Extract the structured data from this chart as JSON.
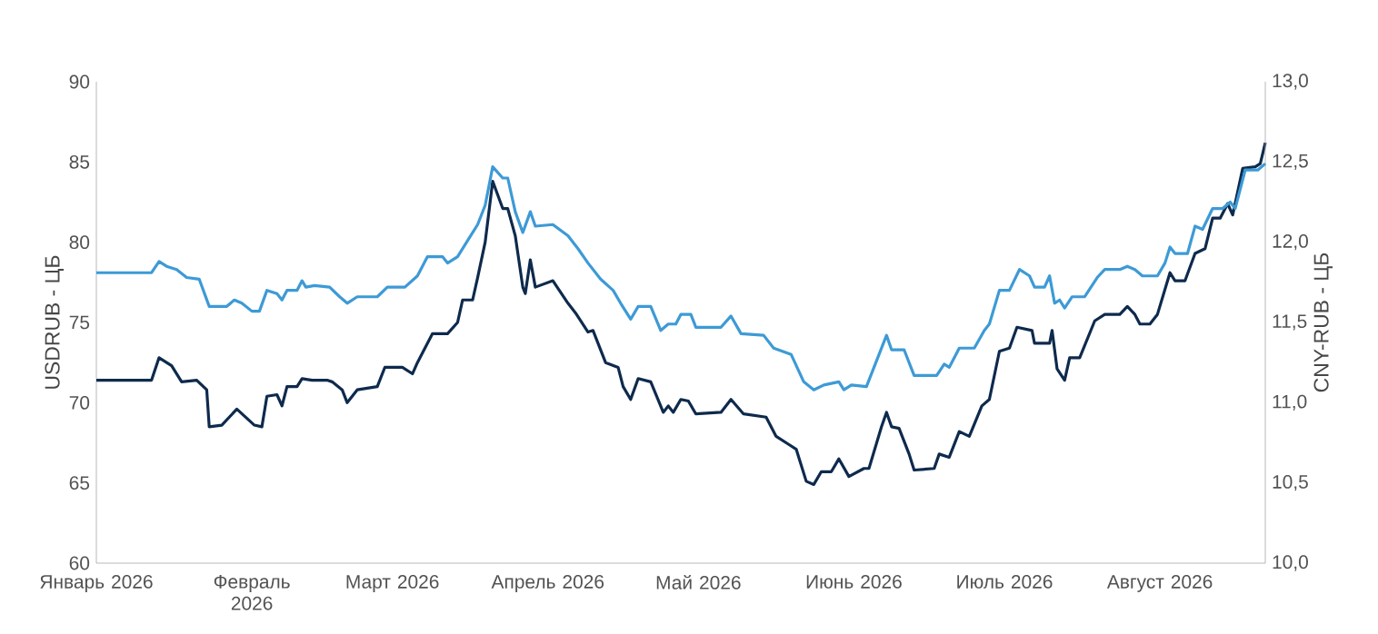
{
  "chart_data": {
    "type": "line",
    "ylabel": "USDRUB - ЦБ",
    "y2label": "CNY-RUB - ЦБ",
    "xlim": [
      "2026-01-01",
      "2026-08-22"
    ],
    "xticks": [
      {
        "value": "2026-01-01",
        "label": "Январь 2026"
      },
      {
        "value": "2026-02-01",
        "label": "Февраль 2026"
      },
      {
        "value": "2026-03-01",
        "label": "Март 2026"
      },
      {
        "value": "2026-04-01",
        "label": "Апрель 2026"
      },
      {
        "value": "2026-05-01",
        "label": "Май 2026"
      },
      {
        "value": "2026-06-01",
        "label": "Июнь 2026"
      },
      {
        "value": "2026-07-01",
        "label": "Июль 2026"
      },
      {
        "value": "2026-08-01",
        "label": "Август 2026"
      }
    ],
    "ylim": [
      60,
      90
    ],
    "yticks": [
      60,
      65,
      70,
      75,
      80,
      85,
      90
    ],
    "y2lim": [
      10,
      13
    ],
    "y2ticks": [
      {
        "value": 10,
        "label": "10,0"
      },
      {
        "value": 10.5,
        "label": "10,5"
      },
      {
        "value": 11,
        "label": "11,0"
      },
      {
        "value": 11.5,
        "label": "11,5"
      },
      {
        "value": 12,
        "label": "12,0"
      },
      {
        "value": 12.5,
        "label": "12,5"
      },
      {
        "value": 13,
        "label": "13,0"
      }
    ],
    "grid": false,
    "legend": false,
    "series": [
      {
        "color": "#0e2a4d",
        "x": [
          "2026-01-01",
          "2026-01-12",
          "2026-01-13T12:00",
          "2026-01-16",
          "2026-01-18",
          "2026-01-21",
          "2026-01-23",
          "2026-01-23T12:00",
          "2026-01-26",
          "2026-01-29",
          "2026-02-01T12:00",
          "2026-02-03",
          "2026-02-04",
          "2026-02-06",
          "2026-02-07",
          "2026-02-08",
          "2026-02-10",
          "2026-02-11",
          "2026-02-13",
          "2026-02-16",
          "2026-02-17",
          "2026-02-19",
          "2026-02-20",
          "2026-02-22",
          "2026-02-26",
          "2026-02-27T12:00",
          "2026-03-03",
          "2026-03-05",
          "2026-03-06",
          "2026-03-09",
          "2026-03-12",
          "2026-03-14",
          "2026-03-15",
          "2026-03-17",
          "2026-03-18",
          "2026-03-19T12:00",
          "2026-03-21",
          "2026-03-23",
          "2026-03-24",
          "2026-03-25T12:00",
          "2026-03-27",
          "2026-03-27T12:00",
          "2026-03-28T12:00",
          "2026-03-29T12:00",
          "2026-04-02",
          "2026-04-05",
          "2026-04-06T12:00",
          "2026-04-09",
          "2026-04-10",
          "2026-04-12T12:00",
          "2026-04-15",
          "2026-04-16",
          "2026-04-17T12:00",
          "2026-04-19",
          "2026-04-21T12:00",
          "2026-04-24",
          "2026-04-25",
          "2026-04-26",
          "2026-04-27T12:00",
          "2026-04-29",
          "2026-04-30T12:00",
          "2026-05-05T12:00",
          "2026-05-07T12:00",
          "2026-05-10",
          "2026-05-14T12:00",
          "2026-05-16T12:00",
          "2026-05-19",
          "2026-05-20T12:00",
          "2026-05-22T12:00",
          "2026-05-24",
          "2026-05-25T12:00",
          "2026-05-27T12:00",
          "2026-05-29",
          "2026-05-31",
          "2026-06-03",
          "2026-06-04",
          "2026-06-06T12:00",
          "2026-06-07T12:00",
          "2026-06-08T12:00",
          "2026-06-10",
          "2026-06-12",
          "2026-06-13",
          "2026-06-17",
          "2026-06-18",
          "2026-06-20",
          "2026-06-22",
          "2026-06-24",
          "2026-06-26T12:00",
          "2026-06-28",
          "2026-06-30",
          "2026-07-02",
          "2026-07-03T12:00",
          "2026-07-06T12:00",
          "2026-07-07",
          "2026-07-10",
          "2026-07-10T12:00",
          "2026-07-11T12:00",
          "2026-07-13",
          "2026-07-14",
          "2026-07-16",
          "2026-07-19",
          "2026-07-21",
          "2026-07-24",
          "2026-07-25T12:00",
          "2026-07-27",
          "2026-07-28",
          "2026-07-30",
          "2026-07-31T12:00",
          "2026-08-03",
          "2026-08-04",
          "2026-08-06",
          "2026-08-08",
          "2026-08-10",
          "2026-08-11T12:00",
          "2026-08-13",
          "2026-08-14T12:00",
          "2026-08-15T12:00",
          "2026-08-17T12:00",
          "2026-08-20",
          "2026-08-21",
          "2026-08-22"
        ],
        "values": [
          71.4,
          71.4,
          72.8,
          72.3,
          71.3,
          71.4,
          70.8,
          68.5,
          68.6,
          69.6,
          68.6,
          68.5,
          70.4,
          70.5,
          69.8,
          71.0,
          71.0,
          71.5,
          71.4,
          71.4,
          71.3,
          70.8,
          70.0,
          70.8,
          71.0,
          72.2,
          72.2,
          71.8,
          72.5,
          74.3,
          74.3,
          75.0,
          76.4,
          76.4,
          77.8,
          80.0,
          83.8,
          82.1,
          82.1,
          80.4,
          77.2,
          76.8,
          78.9,
          77.2,
          77.6,
          76.2,
          75.6,
          74.4,
          74.5,
          72.5,
          72.2,
          71.0,
          70.2,
          71.5,
          71.3,
          69.4,
          69.8,
          69.4,
          70.2,
          70.1,
          69.3,
          69.4,
          70.2,
          69.3,
          69.1,
          67.9,
          67.4,
          67.1,
          65.1,
          64.9,
          65.7,
          65.7,
          66.5,
          65.4,
          65.9,
          65.9,
          68.5,
          69.4,
          68.5,
          68.4,
          66.8,
          65.8,
          65.9,
          66.8,
          66.6,
          68.2,
          67.9,
          69.8,
          70.2,
          73.2,
          73.4,
          74.7,
          74.5,
          73.7,
          73.7,
          74.5,
          72.1,
          71.4,
          72.8,
          72.8,
          75.1,
          75.5,
          75.5,
          76.0,
          75.5,
          74.9,
          74.9,
          75.5,
          78.1,
          77.6,
          77.6,
          79.3,
          79.6,
          81.5,
          81.5,
          82.4,
          81.7,
          84.6,
          84.7,
          84.9,
          86.2
        ]
      },
      {
        "color": "#3d9ad6",
        "axis": "y2",
        "x": [
          "2026-01-01",
          "2026-01-12",
          "2026-01-13T12:00",
          "2026-01-15",
          "2026-01-17",
          "2026-01-19",
          "2026-01-21T12:00",
          "2026-01-23T12:00",
          "2026-01-27",
          "2026-01-28T12:00",
          "2026-01-30",
          "2026-02-01",
          "2026-02-02T12:00",
          "2026-02-04",
          "2026-02-06",
          "2026-02-07",
          "2026-02-08",
          "2026-02-10",
          "2026-02-11",
          "2026-02-11T18:00",
          "2026-02-13T12:00",
          "2026-02-16T12:00",
          "2026-02-18T12:00",
          "2026-02-20",
          "2026-02-22",
          "2026-02-26",
          "2026-02-28",
          "2026-03-03T12:00",
          "2026-03-06",
          "2026-03-08",
          "2026-03-11",
          "2026-03-12",
          "2026-03-14",
          "2026-03-16",
          "2026-03-18",
          "2026-03-19T12:00",
          "2026-03-21",
          "2026-03-23",
          "2026-03-24",
          "2026-03-25T12:00",
          "2026-03-27",
          "2026-03-28T12:00",
          "2026-03-29T12:00",
          "2026-04-02",
          "2026-04-05",
          "2026-04-07",
          "2026-04-09",
          "2026-04-11T12:00",
          "2026-04-14",
          "2026-04-15T12:00",
          "2026-04-17T12:00",
          "2026-04-19",
          "2026-04-21T12:00",
          "2026-04-23T12:00",
          "2026-04-25",
          "2026-04-26T12:00",
          "2026-04-27T12:00",
          "2026-04-29T12:00",
          "2026-04-30T12:00",
          "2026-05-05T12:00",
          "2026-05-07T12:00",
          "2026-05-09T12:00",
          "2026-05-14",
          "2026-05-16",
          "2026-05-19T12:00",
          "2026-05-22",
          "2026-05-24",
          "2026-05-26",
          "2026-05-29",
          "2026-05-30",
          "2026-05-31T12:00",
          "2026-06-03T12:00",
          "2026-06-07T12:00",
          "2026-06-08T12:00",
          "2026-06-11",
          "2026-06-13",
          "2026-06-14T12:00",
          "2026-06-17T12:00",
          "2026-06-19",
          "2026-06-20",
          "2026-06-22",
          "2026-06-25",
          "2026-06-27",
          "2026-06-28",
          "2026-06-30",
          "2026-07-02",
          "2026-07-04",
          "2026-07-06",
          "2026-07-07",
          "2026-07-09",
          "2026-07-10",
          "2026-07-11",
          "2026-07-12",
          "2026-07-13",
          "2026-07-14T12:00",
          "2026-07-17",
          "2026-07-19T12:00",
          "2026-07-21",
          "2026-07-24",
          "2026-07-25T12:00",
          "2026-07-27",
          "2026-07-28T12:00",
          "2026-07-31T12:00",
          "2026-08-02",
          "2026-08-03",
          "2026-08-04",
          "2026-08-06T12:00",
          "2026-08-08",
          "2026-08-09T12:00",
          "2026-08-11T12:00",
          "2026-08-13T12:00",
          "2026-08-15",
          "2026-08-16",
          "2026-08-18",
          "2026-08-20T12:00",
          "2026-08-22"
        ],
        "values": [
          11.81,
          11.81,
          11.88,
          11.85,
          11.83,
          11.78,
          11.77,
          11.6,
          11.6,
          11.64,
          11.62,
          11.57,
          11.57,
          11.7,
          11.68,
          11.64,
          11.7,
          11.7,
          11.76,
          11.72,
          11.73,
          11.72,
          11.66,
          11.62,
          11.66,
          11.66,
          11.72,
          11.72,
          11.79,
          11.91,
          11.91,
          11.87,
          11.91,
          12.01,
          12.11,
          12.23,
          12.47,
          12.4,
          12.4,
          12.19,
          12.06,
          12.19,
          12.1,
          12.11,
          12.04,
          11.96,
          11.87,
          11.77,
          11.7,
          11.62,
          11.52,
          11.6,
          11.6,
          11.45,
          11.49,
          11.49,
          11.55,
          11.55,
          11.47,
          11.47,
          11.54,
          11.43,
          11.42,
          11.34,
          11.3,
          11.13,
          11.08,
          11.11,
          11.13,
          11.08,
          11.11,
          11.1,
          11.42,
          11.33,
          11.33,
          11.17,
          11.17,
          11.17,
          11.24,
          11.22,
          11.34,
          11.34,
          11.45,
          11.49,
          11.7,
          11.7,
          11.83,
          11.79,
          11.72,
          11.72,
          11.79,
          11.62,
          11.64,
          11.59,
          11.66,
          11.66,
          11.78,
          11.83,
          11.83,
          11.85,
          11.83,
          11.79,
          11.79,
          11.87,
          11.97,
          11.93,
          11.93,
          12.1,
          12.08,
          12.21,
          12.21,
          12.25,
          12.21,
          12.45,
          12.45,
          12.49
        ]
      }
    ]
  }
}
